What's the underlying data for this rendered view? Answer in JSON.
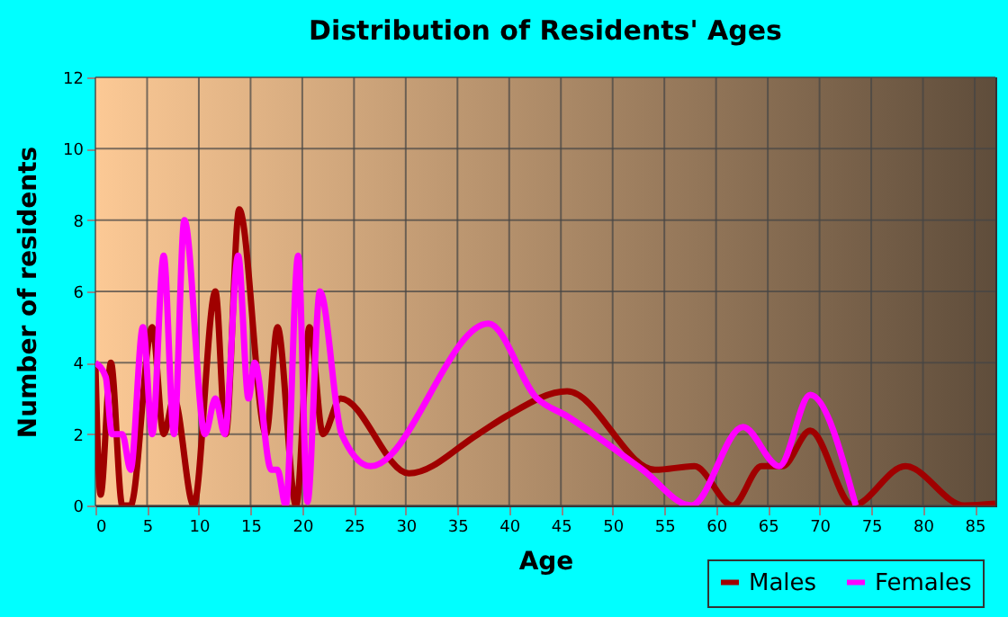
{
  "chart_data": {
    "type": "line",
    "title": "Distribution of Residents' Ages",
    "xlabel": "Age",
    "ylabel": "Number of residents",
    "xlim": [
      0,
      87
    ],
    "xticks": [
      0,
      5,
      10,
      15,
      20,
      25,
      30,
      35,
      40,
      45,
      50,
      55,
      60,
      65,
      70,
      75,
      80,
      85
    ],
    "ylim": [
      0,
      12
    ],
    "yticks": [
      0,
      2,
      4,
      6,
      8,
      10,
      12
    ],
    "grid": true,
    "legend": "bottom right",
    "line_style": "solid",
    "marker": "none",
    "series": [
      {
        "name": "Males",
        "color": "#a00000",
        "x": [
          0,
          0.5,
          1.5,
          2.6,
          3.4,
          5.5,
          6.6,
          7.6,
          9.5,
          11.6,
          12.6,
          13.9,
          16.5,
          17.6,
          19.4,
          20.7,
          22,
          23.7,
          30.3,
          37,
          39.7,
          45.6,
          54.1,
          57.9,
          61.6,
          64.4,
          66.4,
          69.1,
          73.2,
          78.3,
          84,
          87
        ],
        "values": [
          4,
          0.3,
          4,
          0,
          0,
          5,
          2,
          3,
          0,
          6,
          2,
          8.3,
          2,
          5,
          0,
          5,
          2,
          3,
          0.9,
          2,
          2.5,
          3.2,
          1,
          1.1,
          0,
          1.1,
          1.1,
          2.1,
          0,
          1.1,
          0,
          0.05
        ]
      },
      {
        "name": "Females",
        "color": "#ff00ff",
        "x": [
          0,
          1,
          1.6,
          2.6,
          3.4,
          4.6,
          5.5,
          6.6,
          7.6,
          8.6,
          10.6,
          11.6,
          12.5,
          13.8,
          14.8,
          15.4,
          17,
          17.6,
          18.4,
          19.6,
          20.5,
          21.7,
          23.8,
          26.6,
          38,
          42.7,
          45.6,
          52.9,
          57.6,
          62.6,
          66.1,
          69.1,
          73.5
        ],
        "values": [
          4,
          3.6,
          2,
          2,
          1,
          5,
          2,
          7,
          2,
          8,
          2,
          3,
          2,
          7,
          3,
          4,
          1,
          1,
          0,
          7,
          0.1,
          6,
          2,
          1.1,
          5.1,
          3,
          2.5,
          1,
          0,
          2.2,
          1.1,
          3.1,
          0
        ]
      }
    ]
  }
}
